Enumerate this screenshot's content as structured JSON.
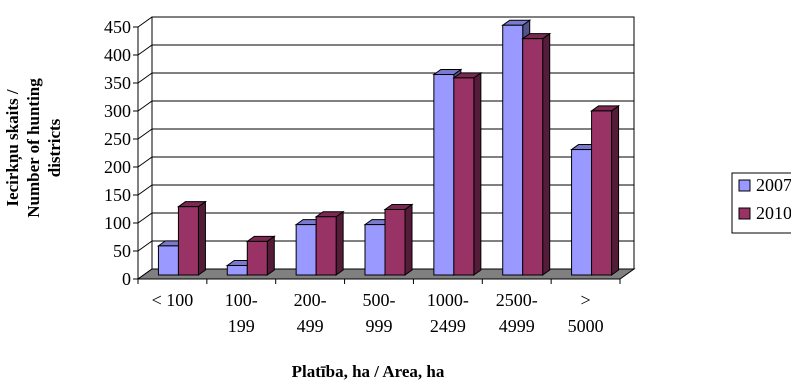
{
  "chart_data": {
    "type": "bar",
    "title": "",
    "xlabel": "Platība, ha / Area, ha",
    "ylabel_lines": [
      "Iecirkņu skaits /",
      "Number of hunting",
      "districts"
    ],
    "categories": [
      [
        "< 100"
      ],
      [
        "100-",
        "199"
      ],
      [
        "200-",
        "499"
      ],
      [
        "500-",
        "999"
      ],
      [
        "1000-",
        "2499"
      ],
      [
        "2500-",
        "4999"
      ],
      [
        ">",
        "5000"
      ]
    ],
    "series": [
      {
        "name": "2007",
        "values": [
          52,
          17,
          90,
          90,
          358,
          446,
          224
        ],
        "color": "#9999ff"
      },
      {
        "name": "2010",
        "values": [
          122,
          60,
          104,
          117,
          352,
          422,
          293
        ],
        "color": "#993366"
      }
    ],
    "ylim": [
      0,
      450
    ],
    "yticks": [
      0,
      50,
      100,
      150,
      200,
      250,
      300,
      350,
      400,
      450
    ],
    "grid": true,
    "legend_position": "right",
    "floor_color": "#808080"
  }
}
